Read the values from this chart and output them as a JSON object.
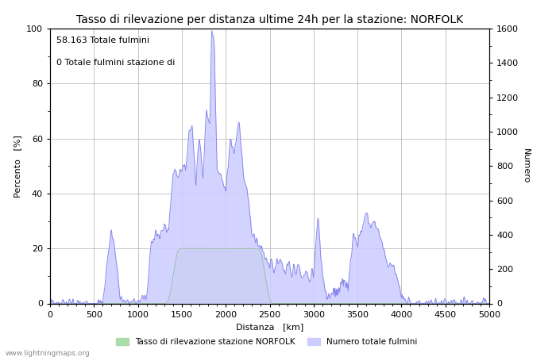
{
  "title": "Tasso di rilevazione per distanza ultime 24h per la stazione: NORFOLK",
  "xlabel": "Distanza   [km]",
  "ylabel_left": "Percento   [%]",
  "ylabel_right": "Numero",
  "annotation_line1": "58.163 Totale fulmini",
  "annotation_line2": "0 Totale fulmini stazione di",
  "xlim": [
    0,
    5000
  ],
  "ylim_left": [
    0,
    100
  ],
  "ylim_right": [
    0,
    1600
  ],
  "xticks": [
    0,
    500,
    1000,
    1500,
    2000,
    2500,
    3000,
    3500,
    4000,
    4500,
    5000
  ],
  "yticks_left": [
    0,
    20,
    40,
    60,
    80,
    100
  ],
  "yticks_right": [
    0,
    200,
    400,
    600,
    800,
    1000,
    1200,
    1400,
    1600
  ],
  "legend_label_green": "Tasso di rilevazione stazione NORFOLK",
  "legend_label_blue": "Numero totale fulmini",
  "fill_green_color": "#aaddaa",
  "fill_blue_color": "#ccccff",
  "line_blue_color": "#8888ee",
  "line_green_color": "#88bb88",
  "background_color": "#FFFFFF",
  "grid_color": "#bbbbbb",
  "watermark": "www.lightningmaps.org",
  "title_fontsize": 10,
  "axis_fontsize": 8,
  "tick_fontsize": 8,
  "annotation_fontsize": 8
}
